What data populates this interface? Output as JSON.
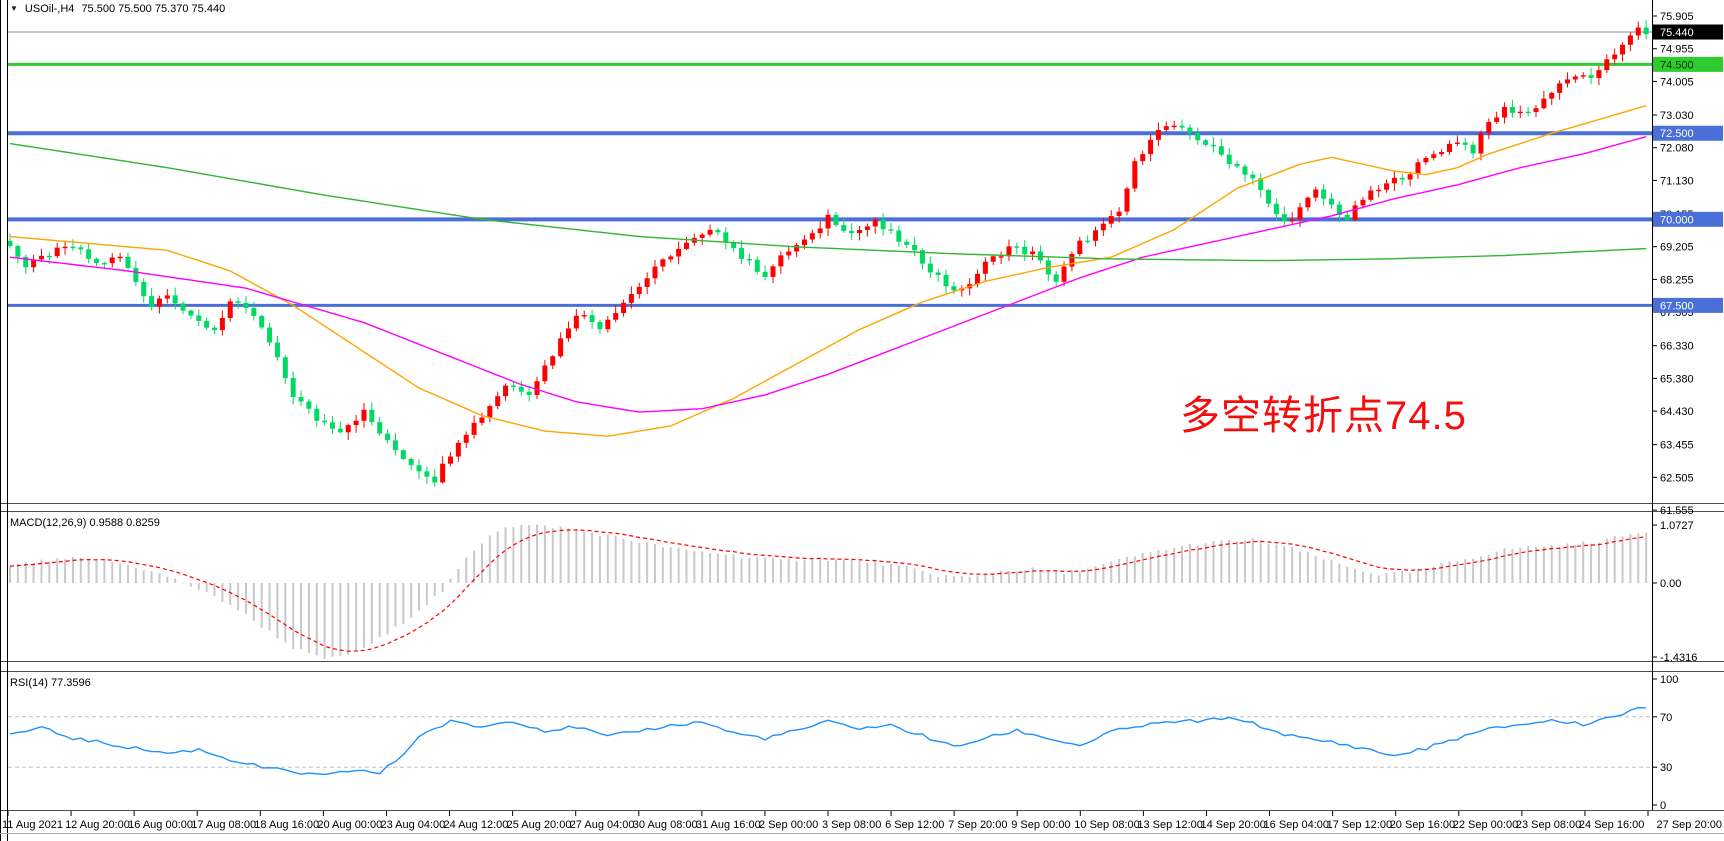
{
  "header": {
    "dropdown_icon": "▼",
    "symbol_period": "USOil-,H4",
    "quote": "75.500 75.500 75.370 75.440"
  },
  "annotation": {
    "text": "多空转折点74.5",
    "color": "#f50d0d"
  },
  "panels": {
    "macd_label": "MACD(12,26,9) 0.9588 0.8259",
    "rsi_label": "RSI(14) 77.3596"
  },
  "colors": {
    "bull": "#ff0000",
    "bear": "#00d964",
    "price_line": "#7d8a99",
    "ma_fast": "#ffa500",
    "ma_mid": "#ff00ff",
    "ma_slow": "#33b533",
    "macd_hist": "#c8c8c8",
    "macd_signal": "#ff0000",
    "rsi_line": "#1e90ff",
    "rsi_levels": "#c0c0c0",
    "axis_text": "#000000",
    "frame": "#4d4d4d"
  },
  "price_axis": {
    "tick_labels": [
      "75.905",
      "74.955",
      "74.005",
      "73.030",
      "72.080",
      "71.130",
      "70.155",
      "69.205",
      "68.255",
      "67.305",
      "66.330",
      "65.380",
      "64.430",
      "63.455",
      "62.505",
      "61.555"
    ],
    "badges": [
      {
        "label": "75.440",
        "price": 75.44,
        "bg": "#000000",
        "fg": "#ffffff"
      },
      {
        "label": "74.500",
        "price": 74.5,
        "bg": "#2fcc2f",
        "fg": "#003300"
      },
      {
        "label": "72.500",
        "price": 72.5,
        "bg": "#4a6fd8",
        "fg": "#ffffff"
      },
      {
        "label": "70.000",
        "price": 70.0,
        "bg": "#4a6fd8",
        "fg": "#ffffff"
      },
      {
        "label": "67.500",
        "price": 67.5,
        "bg": "#4a6fd8",
        "fg": "#ffffff"
      }
    ]
  },
  "chart_data": [
    {
      "type": "candlestick",
      "title": "USOil-,H4",
      "timeframe": "H4",
      "bars_total": 209,
      "ohlc_current": {
        "open": 75.5,
        "high": 75.5,
        "low": 75.37,
        "close": 75.44
      },
      "current_price": 75.44,
      "y_range": [
        61.555,
        76.37
      ],
      "x_labels": [
        "11 Aug 2021",
        "12 Aug 20:00",
        "16 Aug 00:00",
        "17 Aug 08:00",
        "18 Aug 16:00",
        "20 Aug 00:00",
        "23 Aug 04:00",
        "24 Aug 12:00",
        "25 Aug 20:00",
        "27 Aug 04:00",
        "30 Aug 08:00",
        "31 Aug 16:00",
        "2 Sep 00:00",
        "3 Sep 08:00",
        "6 Sep 12:00",
        "7 Sep 20:00",
        "9 Sep 00:00",
        "10 Sep 08:00",
        "13 Sep 12:00",
        "14 Sep 20:00",
        "16 Sep 04:00",
        "17 Sep 12:00",
        "20 Sep 16:00",
        "22 Sep 00:00",
        "23 Sep 08:00",
        "24 Sep 16:00",
        "27 Sep 20:00"
      ],
      "horizontal_levels": [
        {
          "price": 74.5,
          "color": "#2fcc2f",
          "width": 3
        },
        {
          "price": 72.5,
          "color": "#4a6fd8",
          "width": 4
        },
        {
          "price": 70.0,
          "color": "#4a6fd8",
          "width": 4
        },
        {
          "price": 67.5,
          "color": "#4a6fd8",
          "width": 3
        }
      ],
      "close_waypoints": [
        [
          0,
          69.3
        ],
        [
          2,
          68.6
        ],
        [
          5,
          69.0
        ],
        [
          8,
          69.2
        ],
        [
          11,
          68.7
        ],
        [
          14,
          68.9
        ],
        [
          16,
          68.2
        ],
        [
          18,
          67.5
        ],
        [
          20,
          67.9
        ],
        [
          23,
          67.1
        ],
        [
          26,
          66.8
        ],
        [
          28,
          67.6
        ],
        [
          31,
          67.2
        ],
        [
          33,
          66.4
        ],
        [
          36,
          64.9
        ],
        [
          39,
          64.2
        ],
        [
          42,
          63.9
        ],
        [
          45,
          64.4
        ],
        [
          48,
          63.5
        ],
        [
          51,
          62.9
        ],
        [
          54,
          62.45
        ],
        [
          57,
          63.6
        ],
        [
          60,
          64.3
        ],
        [
          63,
          65.2
        ],
        [
          66,
          65.0
        ],
        [
          69,
          66.1
        ],
        [
          72,
          67.3
        ],
        [
          75,
          66.9
        ],
        [
          78,
          67.6
        ],
        [
          81,
          68.3
        ],
        [
          84,
          69.0
        ],
        [
          87,
          69.4
        ],
        [
          90,
          69.7
        ],
        [
          93,
          68.9
        ],
        [
          96,
          68.4
        ],
        [
          99,
          69.1
        ],
        [
          102,
          69.5
        ],
        [
          104,
          70.1
        ],
        [
          107,
          69.6
        ],
        [
          110,
          69.9
        ],
        [
          113,
          69.4
        ],
        [
          116,
          68.8
        ],
        [
          119,
          68.1
        ],
        [
          121,
          67.9
        ],
        [
          124,
          68.7
        ],
        [
          127,
          69.2
        ],
        [
          130,
          69.0
        ],
        [
          133,
          68.2
        ],
        [
          136,
          69.3
        ],
        [
          139,
          69.8
        ],
        [
          141,
          70.2
        ],
        [
          143,
          71.6
        ],
        [
          145,
          72.4
        ],
        [
          147,
          72.7
        ],
        [
          150,
          72.5
        ],
        [
          152,
          72.2
        ],
        [
          155,
          71.7
        ],
        [
          158,
          71.2
        ],
        [
          160,
          70.4
        ],
        [
          162,
          69.9
        ],
        [
          164,
          70.3
        ],
        [
          166,
          70.8
        ],
        [
          168,
          70.4
        ],
        [
          170,
          70.0
        ],
        [
          172,
          70.6
        ],
        [
          175,
          71.0
        ],
        [
          178,
          71.4
        ],
        [
          181,
          71.9
        ],
        [
          184,
          72.3
        ],
        [
          186,
          72.0
        ],
        [
          188,
          72.8
        ],
        [
          190,
          73.2
        ],
        [
          193,
          73.1
        ],
        [
          196,
          73.7
        ],
        [
          199,
          74.2
        ],
        [
          201,
          74.0
        ],
        [
          203,
          74.7
        ],
        [
          205,
          75.0
        ],
        [
          207,
          75.55
        ],
        [
          208,
          75.44
        ]
      ],
      "moving_averages": [
        {
          "name": "ma-fast-orange",
          "color": "#ffa500",
          "waypoints": [
            [
              0,
              69.5
            ],
            [
              10,
              69.3
            ],
            [
              20,
              69.1
            ],
            [
              28,
              68.5
            ],
            [
              36,
              67.5
            ],
            [
              44,
              66.3
            ],
            [
              52,
              65.1
            ],
            [
              60,
              64.3
            ],
            [
              68,
              63.85
            ],
            [
              76,
              63.7
            ],
            [
              84,
              64.0
            ],
            [
              92,
              64.8
            ],
            [
              100,
              65.8
            ],
            [
              108,
              66.8
            ],
            [
              116,
              67.6
            ],
            [
              124,
              68.2
            ],
            [
              132,
              68.6
            ],
            [
              140,
              68.9
            ],
            [
              148,
              69.7
            ],
            [
              156,
              70.9
            ],
            [
              164,
              71.6
            ],
            [
              168,
              71.8
            ],
            [
              172,
              71.6
            ],
            [
              176,
              71.4
            ],
            [
              180,
              71.3
            ],
            [
              184,
              71.5
            ],
            [
              188,
              71.9
            ],
            [
              196,
              72.5
            ],
            [
              202,
              72.9
            ],
            [
              208,
              73.3
            ]
          ]
        },
        {
          "name": "ma-mid-magenta",
          "color": "#ff00ff",
          "waypoints": [
            [
              0,
              68.9
            ],
            [
              15,
              68.5
            ],
            [
              30,
              68.0
            ],
            [
              45,
              67.0
            ],
            [
              55,
              66.1
            ],
            [
              65,
              65.2
            ],
            [
              72,
              64.7
            ],
            [
              80,
              64.4
            ],
            [
              88,
              64.5
            ],
            [
              96,
              64.9
            ],
            [
              104,
              65.5
            ],
            [
              112,
              66.2
            ],
            [
              120,
              66.9
            ],
            [
              128,
              67.6
            ],
            [
              136,
              68.3
            ],
            [
              144,
              68.9
            ],
            [
              152,
              69.3
            ],
            [
              160,
              69.7
            ],
            [
              168,
              70.1
            ],
            [
              176,
              70.6
            ],
            [
              184,
              71.0
            ],
            [
              192,
              71.5
            ],
            [
              200,
              71.9
            ],
            [
              208,
              72.4
            ]
          ]
        },
        {
          "name": "ma-slow-green",
          "color": "#33b533",
          "waypoints": [
            [
              0,
              72.2
            ],
            [
              20,
              71.5
            ],
            [
              40,
              70.7
            ],
            [
              60,
              70.0
            ],
            [
              80,
              69.5
            ],
            [
              100,
              69.2
            ],
            [
              120,
              69.0
            ],
            [
              140,
              68.85
            ],
            [
              160,
              68.8
            ],
            [
              175,
              68.85
            ],
            [
              190,
              68.95
            ],
            [
              208,
              69.15
            ]
          ]
        }
      ]
    },
    {
      "type": "bar",
      "name": "MACD",
      "label": "MACD(12,26,9) 0.9588 0.8259",
      "current": {
        "macd": 0.9588,
        "signal": 0.8259
      },
      "y_ticks": [
        {
          "label": "1.0727",
          "value": 1.0727
        },
        {
          "label": "0.00",
          "value": 0
        },
        {
          "label": "-1.4316",
          "value": -1.4316
        }
      ],
      "macd_waypoints": [
        [
          0,
          0.32
        ],
        [
          4,
          0.4
        ],
        [
          8,
          0.45
        ],
        [
          12,
          0.42
        ],
        [
          16,
          0.3
        ],
        [
          20,
          0.12
        ],
        [
          24,
          -0.12
        ],
        [
          28,
          -0.4
        ],
        [
          32,
          -0.8
        ],
        [
          36,
          -1.2
        ],
        [
          40,
          -1.43
        ],
        [
          44,
          -1.28
        ],
        [
          48,
          -0.95
        ],
        [
          52,
          -0.5
        ],
        [
          55,
          -0.15
        ],
        [
          58,
          0.45
        ],
        [
          61,
          0.9
        ],
        [
          63,
          1.05
        ],
        [
          66,
          1.07
        ],
        [
          70,
          1.03
        ],
        [
          74,
          0.93
        ],
        [
          78,
          0.82
        ],
        [
          82,
          0.7
        ],
        [
          86,
          0.6
        ],
        [
          90,
          0.55
        ],
        [
          94,
          0.48
        ],
        [
          98,
          0.42
        ],
        [
          102,
          0.46
        ],
        [
          106,
          0.42
        ],
        [
          110,
          0.38
        ],
        [
          114,
          0.28
        ],
        [
          118,
          0.14
        ],
        [
          122,
          0.1
        ],
        [
          126,
          0.22
        ],
        [
          130,
          0.26
        ],
        [
          134,
          0.18
        ],
        [
          138,
          0.3
        ],
        [
          142,
          0.46
        ],
        [
          146,
          0.6
        ],
        [
          150,
          0.7
        ],
        [
          154,
          0.77
        ],
        [
          158,
          0.8
        ],
        [
          162,
          0.68
        ],
        [
          166,
          0.5
        ],
        [
          170,
          0.3
        ],
        [
          174,
          0.16
        ],
        [
          178,
          0.2
        ],
        [
          182,
          0.34
        ],
        [
          186,
          0.48
        ],
        [
          190,
          0.62
        ],
        [
          194,
          0.68
        ],
        [
          198,
          0.7
        ],
        [
          202,
          0.78
        ],
        [
          206,
          0.9
        ],
        [
          208,
          0.96
        ]
      ]
    },
    {
      "type": "line",
      "name": "RSI",
      "label": "RSI(14) 77.3596",
      "current": 77.3596,
      "levels": [
        {
          "label": "100",
          "value": 100,
          "dashed": false
        },
        {
          "label": "70",
          "value": 70,
          "dashed": true
        },
        {
          "label": "30",
          "value": 30,
          "dashed": true
        },
        {
          "label": "0",
          "value": 0,
          "dashed": false
        }
      ],
      "waypoints": [
        [
          0,
          56
        ],
        [
          4,
          61
        ],
        [
          8,
          53
        ],
        [
          12,
          49
        ],
        [
          16,
          45
        ],
        [
          20,
          41
        ],
        [
          24,
          44
        ],
        [
          28,
          36
        ],
        [
          32,
          30
        ],
        [
          36,
          26
        ],
        [
          40,
          23
        ],
        [
          44,
          28
        ],
        [
          47,
          25
        ],
        [
          50,
          40
        ],
        [
          52,
          55
        ],
        [
          56,
          66
        ],
        [
          60,
          62
        ],
        [
          64,
          67
        ],
        [
          68,
          59
        ],
        [
          72,
          62
        ],
        [
          76,
          54
        ],
        [
          80,
          59
        ],
        [
          84,
          63
        ],
        [
          88,
          66
        ],
        [
          92,
          57
        ],
        [
          96,
          53
        ],
        [
          100,
          59
        ],
        [
          104,
          66
        ],
        [
          108,
          61
        ],
        [
          112,
          63
        ],
        [
          116,
          55
        ],
        [
          120,
          46
        ],
        [
          124,
          53
        ],
        [
          128,
          59
        ],
        [
          132,
          53
        ],
        [
          136,
          47
        ],
        [
          140,
          58
        ],
        [
          144,
          63
        ],
        [
          148,
          66
        ],
        [
          152,
          67
        ],
        [
          156,
          69
        ],
        [
          160,
          60
        ],
        [
          164,
          53
        ],
        [
          168,
          50
        ],
        [
          172,
          45
        ],
        [
          176,
          39
        ],
        [
          180,
          45
        ],
        [
          184,
          53
        ],
        [
          188,
          60
        ],
        [
          192,
          64
        ],
        [
          196,
          67
        ],
        [
          200,
          64
        ],
        [
          204,
          71
        ],
        [
          208,
          77.4
        ]
      ]
    }
  ]
}
